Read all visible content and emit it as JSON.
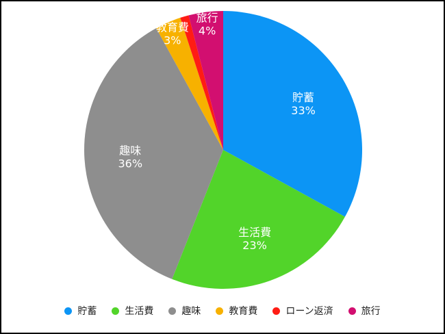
{
  "chart_data": {
    "type": "pie",
    "slices": [
      {
        "label": "貯蓄",
        "value": 33,
        "color": "#0c95f5"
      },
      {
        "label": "生活費",
        "value": 23,
        "color": "#52d42a"
      },
      {
        "label": "趣味",
        "value": 36,
        "color": "#8e8e8e"
      },
      {
        "label": "教育費",
        "value": 3,
        "color": "#f7b100"
      },
      {
        "label": "ローン返済",
        "value": 1,
        "color": "#ff1c14"
      },
      {
        "label": "旅行",
        "value": 4,
        "color": "#d20f70"
      }
    ],
    "value_suffix": "%",
    "legend_position": "bottom"
  }
}
